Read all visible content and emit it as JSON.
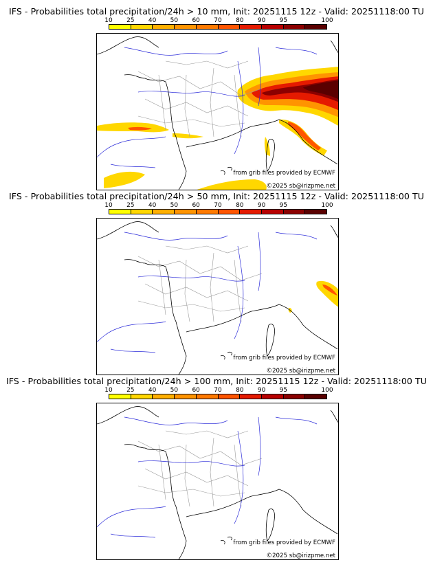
{
  "panels": [
    {
      "title": "IFS - Probabilities total precipitation/24h > 10 mm, Init: 20251115 12z - Valid: 20251118:00 TU",
      "threshold": "10 mm"
    },
    {
      "title": "IFS - Probabilities total precipitation/24h > 50 mm, Init: 20251115 12z - Valid: 20251118:00 TU",
      "threshold": "50 mm"
    },
    {
      "title": "IFS - Probabilities total precipitation/24h > 100 mm, Init: 20251115 12z - Valid: 20251118:00 TU",
      "threshold": "100 mm"
    }
  ],
  "scale": {
    "ticks": [
      "10",
      "25",
      "40",
      "50",
      "60",
      "70",
      "80",
      "90",
      "95",
      "100"
    ],
    "colors": [
      "#ffff00",
      "#ffd700",
      "#ffb000",
      "#ff9400",
      "#ff7a00",
      "#ff5500",
      "#e51a00",
      "#b80000",
      "#8b0000",
      "#5a0000"
    ]
  },
  "credits": {
    "source": "from grib files provided by ECMWF",
    "copyright": "©2025 sb@irizpme.net"
  },
  "colors": {
    "coast": "#000000",
    "rivers": "#2b2bd9",
    "borders": "#9a9a9a"
  }
}
